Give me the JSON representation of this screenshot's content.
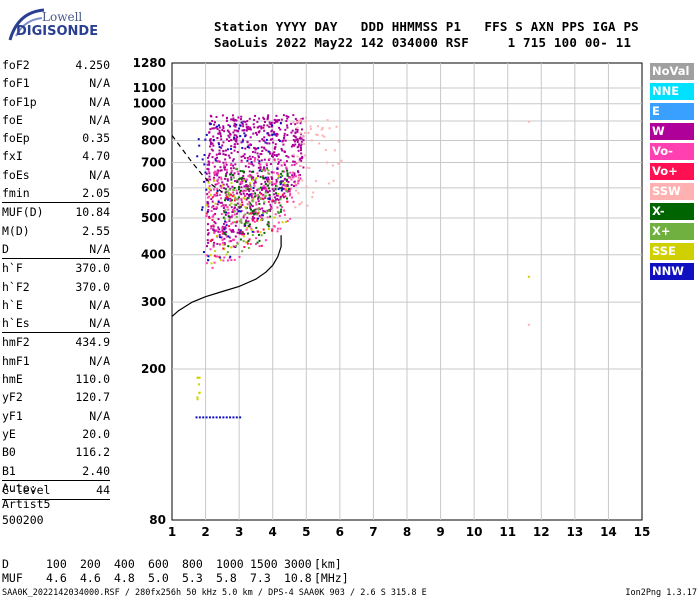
{
  "logo": {
    "line1": "Lowell",
    "line2": "DIGISONDE"
  },
  "header": {
    "line1": "Station YYYY DAY   DDD HHMMSS P1   FFS S AXN PPS IGA PS",
    "line2": "SaoLuis 2022 May22 142 034000 RSF     1 715 100 00- 11"
  },
  "parameters": [
    {
      "name": "foF2",
      "value": "4.250"
    },
    {
      "name": "foF1",
      "value": "N/A"
    },
    {
      "name": "foF1p",
      "value": "N/A"
    },
    {
      "name": "foE",
      "value": "N/A"
    },
    {
      "name": "foEp",
      "value": "0.35"
    },
    {
      "name": "fxI",
      "value": "4.70"
    },
    {
      "name": "foEs",
      "value": "N/A"
    },
    {
      "name": "fmin",
      "value": "2.05",
      "sep": true
    },
    {
      "name": "MUF(D)",
      "value": "10.84"
    },
    {
      "name": "M(D)",
      "value": "2.55"
    },
    {
      "name": "D",
      "value": "N/A",
      "sep": true
    },
    {
      "name": "h`F",
      "value": "370.0"
    },
    {
      "name": "h`F2",
      "value": "370.0"
    },
    {
      "name": "h`E",
      "value": "N/A"
    },
    {
      "name": "h`Es",
      "value": "N/A",
      "sep": true
    },
    {
      "name": "hmF2",
      "value": "434.9"
    },
    {
      "name": "hmF1",
      "value": "N/A"
    },
    {
      "name": "hmE",
      "value": "110.0"
    },
    {
      "name": "yF2",
      "value": "120.7"
    },
    {
      "name": "yF1",
      "value": "N/A"
    },
    {
      "name": "yE",
      "value": "20.0"
    },
    {
      "name": "B0",
      "value": "116.2"
    },
    {
      "name": "B1",
      "value": "2.40",
      "sep": true
    },
    {
      "name": "C-level",
      "value": "44",
      "sep": true
    }
  ],
  "autoscaling": {
    "line1": "Auto:",
    "line2": "Artist5",
    "line3": "500200"
  },
  "legend": [
    {
      "label": "NoVal",
      "color": "#a0a0a0"
    },
    {
      "label": "NNE",
      "color": "#00e0ff"
    },
    {
      "label": "E",
      "color": "#3aa0ff"
    },
    {
      "label": "W",
      "color": "#b0009a"
    },
    {
      "label": "Vo-",
      "color": "#ff40b0"
    },
    {
      "label": "Vo+",
      "color": "#ff1050"
    },
    {
      "label": "SSW",
      "color": "#ffb0b0"
    },
    {
      "label": "X-",
      "color": "#006400"
    },
    {
      "label": "X+",
      "color": "#70b040"
    },
    {
      "label": "SSE",
      "color": "#d0d000"
    },
    {
      "label": "NNW",
      "color": "#1010c0"
    }
  ],
  "muf_table": {
    "d_label": "D",
    "muf_label": "MUF",
    "distances": [
      "100",
      "200",
      "400",
      "600",
      "800",
      "1000",
      "1500",
      "3000"
    ],
    "mufs": [
      "4.6",
      "4.6",
      "4.8",
      "5.0",
      "5.3",
      "5.8",
      "7.3",
      "10.8"
    ],
    "d_unit": "[km]",
    "muf_unit": "[MHz]"
  },
  "footer": {
    "left": "SAA0K_2022142034000.RSF / 280fx256h 50 kHz 5.0 km / DPS-4 SAA0K 903 / 2.6 S 315.8 E",
    "right": "Ion2Png 1.3.17"
  },
  "chart_data": {
    "type": "scatter",
    "xlim": [
      1,
      15
    ],
    "ylim": [
      80,
      1280
    ],
    "x_ticks": [
      1,
      2,
      3,
      4,
      5,
      6,
      7,
      8,
      9,
      10,
      11,
      12,
      13,
      14,
      15
    ],
    "y_ticks": [
      80,
      200,
      300,
      400,
      500,
      600,
      700,
      800,
      900,
      1000,
      1100,
      1280
    ],
    "y_scale": "log",
    "grid": true,
    "series": [
      {
        "name": "trace",
        "color": "#000000",
        "x": [
          1.0,
          1.2,
          1.6,
          2.0,
          2.5,
          3.0,
          3.5,
          3.8,
          4.0,
          4.15,
          4.25,
          4.25
        ],
        "y": [
          275,
          285,
          300,
          310,
          320,
          330,
          345,
          360,
          375,
          395,
          420,
          450
        ]
      },
      {
        "name": "dashed",
        "color": "#000000",
        "x": [
          1.0,
          1.3,
          1.6,
          1.9,
          2.2,
          2.5
        ],
        "y": [
          825,
          760,
          700,
          650,
          610,
          585
        ]
      }
    ],
    "echo_clusters": [
      {
        "name": "W",
        "color": "#b0009a",
        "x_range": [
          2.0,
          4.9
        ],
        "y_range": [
          420,
          940
        ],
        "count": 900
      },
      {
        "name": "Vo-",
        "color": "#ff40b0",
        "x_range": [
          2.0,
          4.8
        ],
        "y_range": [
          370,
          720
        ],
        "count": 260
      },
      {
        "name": "NNW",
        "color": "#1010c0",
        "x_range": [
          1.7,
          4.3
        ],
        "y_range": [
          360,
          900
        ],
        "count": 120
      },
      {
        "name": "X-",
        "color": "#006400",
        "x_range": [
          2.5,
          4.5
        ],
        "y_range": [
          400,
          680
        ],
        "count": 110
      },
      {
        "name": "X+",
        "color": "#70b040",
        "x_range": [
          2.5,
          4.5
        ],
        "y_range": [
          400,
          680
        ],
        "count": 90
      },
      {
        "name": "SSE",
        "color": "#d0d000",
        "x_range": [
          2.0,
          4.5
        ],
        "y_range": [
          380,
          650
        ],
        "count": 60
      },
      {
        "name": "SSW",
        "color": "#ffb0b0",
        "x_range": [
          4.5,
          6.1
        ],
        "y_range": [
          500,
          930
        ],
        "count": 70
      },
      {
        "name": "Vo+",
        "color": "#ff1050",
        "x_range": [
          2.0,
          4.5
        ],
        "y_range": [
          380,
          600
        ],
        "count": 50
      }
    ],
    "low_echoes": [
      {
        "name": "NNW",
        "color": "#1010c0",
        "x": [
          1.7,
          3.1
        ],
        "y": 150
      },
      {
        "name": "SSE",
        "color": "#d0d000",
        "x": [
          1.7,
          1.8
        ],
        "y": [
          165,
          195
        ]
      }
    ],
    "isolated": [
      {
        "color": "#d0d000",
        "x": 11.6,
        "y": 352
      },
      {
        "color": "#ffb0b0",
        "x": 11.6,
        "y": 263
      },
      {
        "color": "#ffb0b0",
        "x": 11.6,
        "y": 902
      }
    ]
  }
}
